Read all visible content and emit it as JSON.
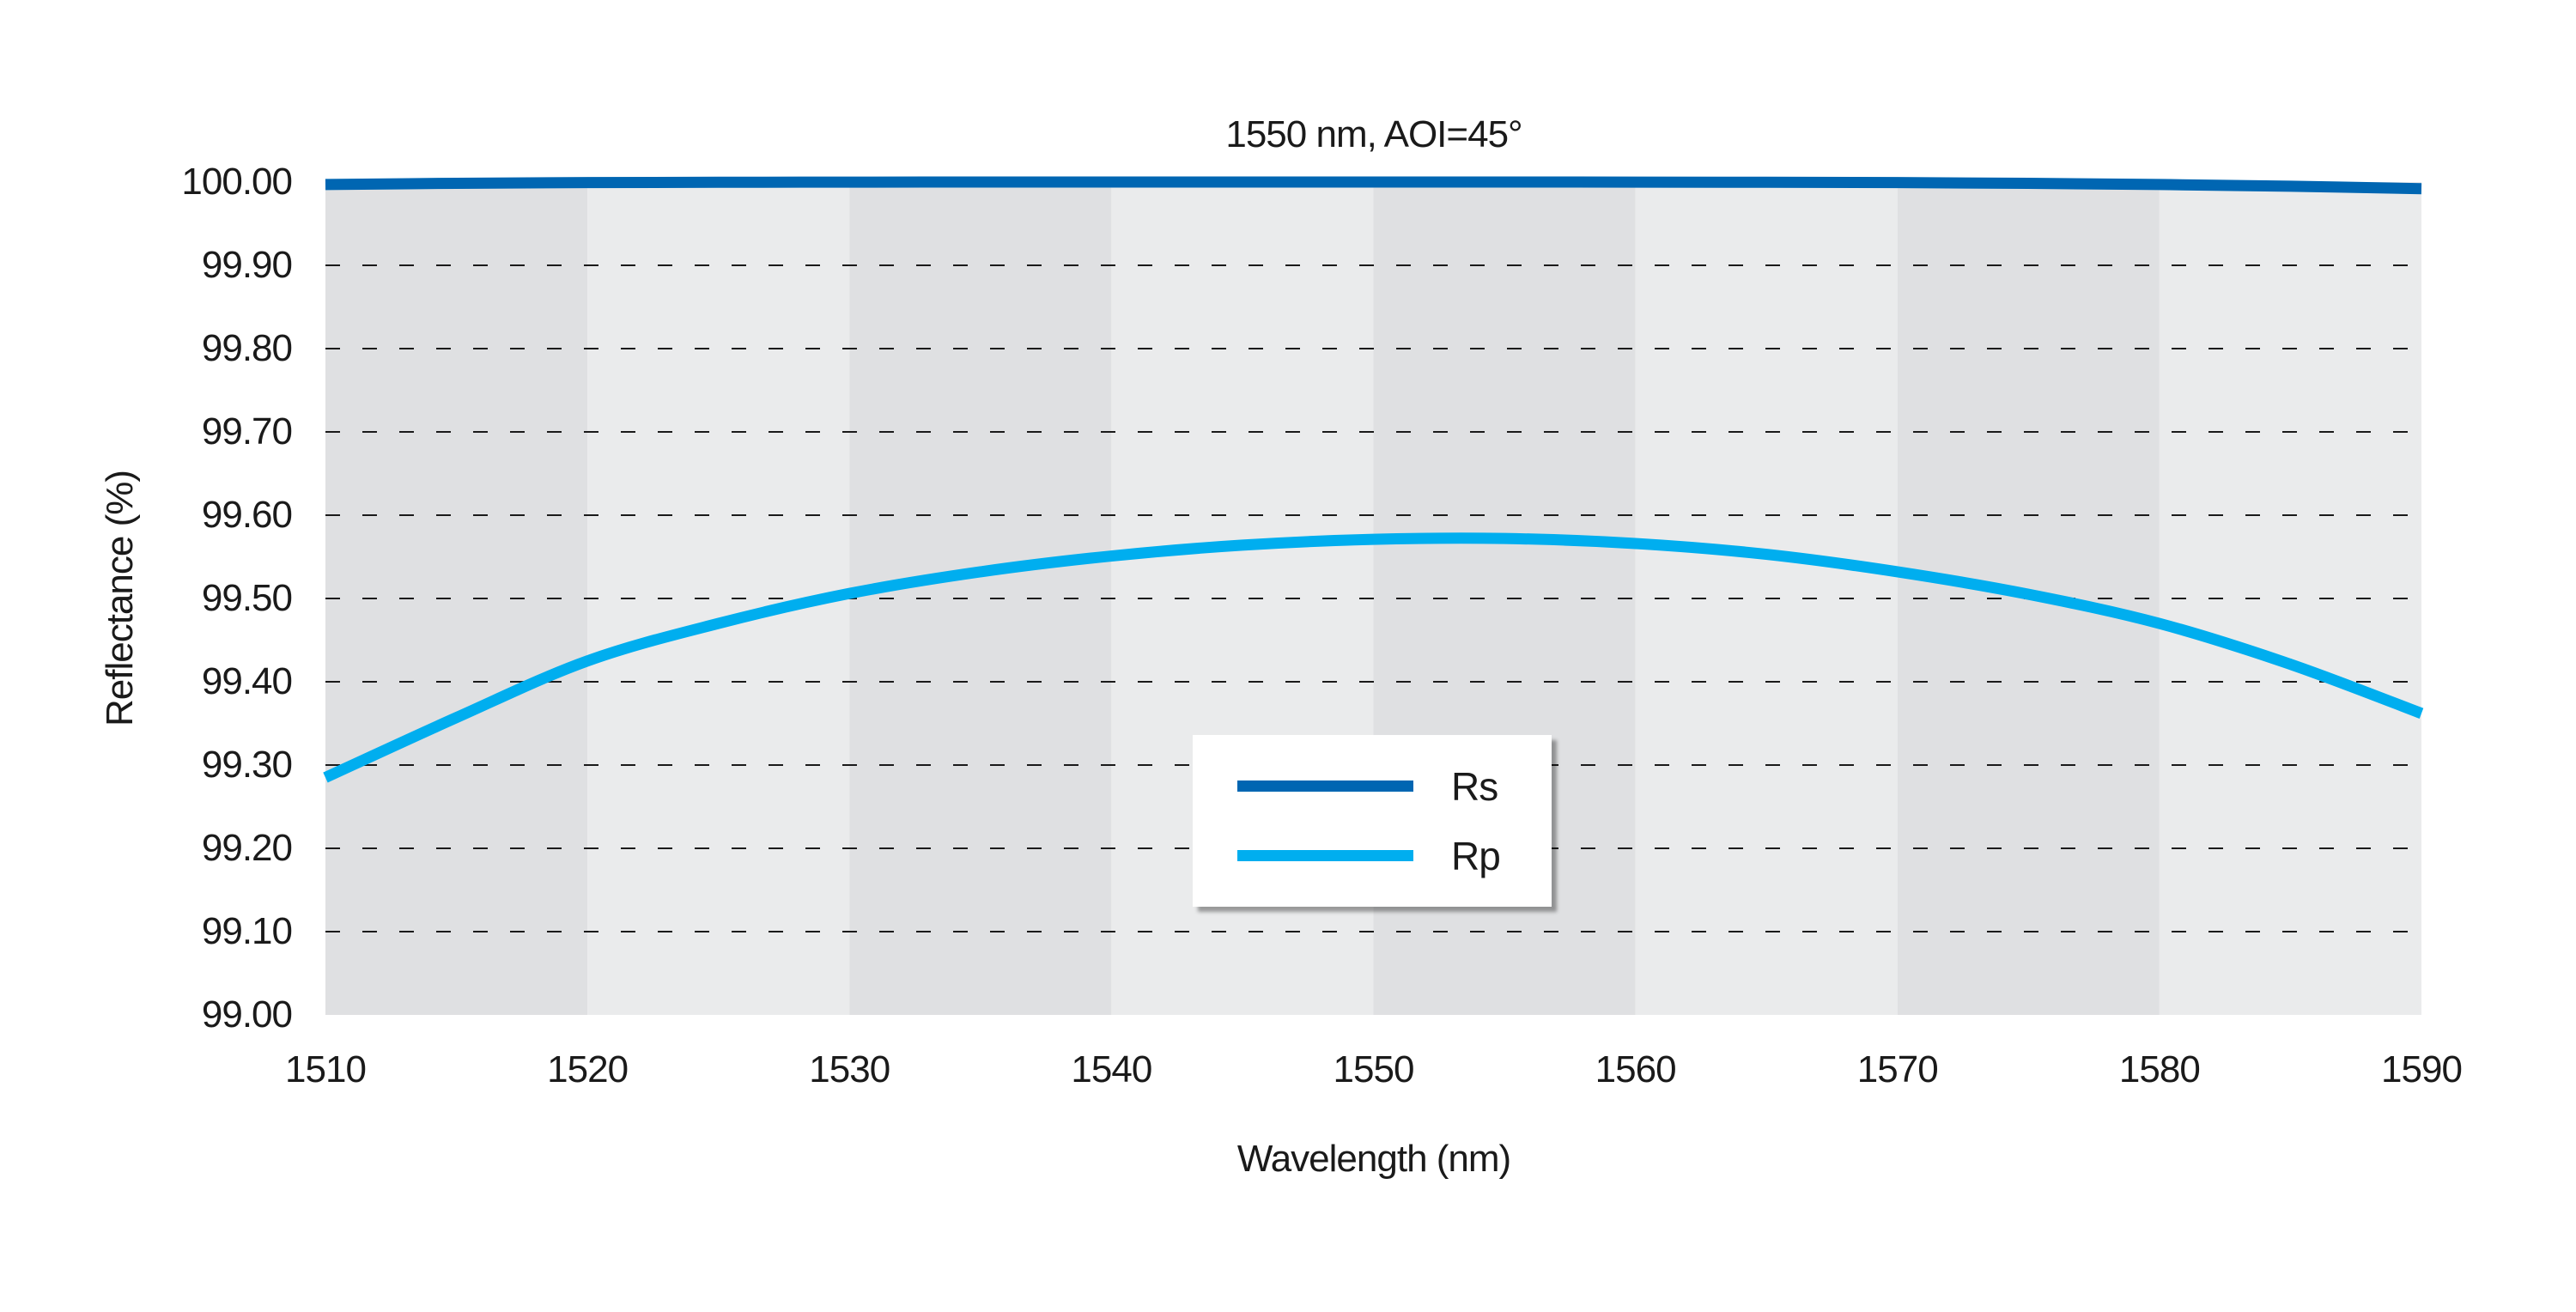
{
  "chart_data": {
    "type": "line",
    "title": "1550 nm, AOI=45°",
    "xlabel": "Wavelength (nm)",
    "ylabel": "Reflectance (%)",
    "x_range": [
      1510,
      1590
    ],
    "y_range": [
      99.0,
      100.0
    ],
    "x_ticks": [
      1510,
      1520,
      1530,
      1540,
      1550,
      1560,
      1570,
      1580,
      1590
    ],
    "y_ticks": [
      100.0,
      99.9,
      99.8,
      99.7,
      99.6,
      99.5,
      99.4,
      99.3,
      99.2,
      99.1,
      99.0
    ],
    "grid": {
      "horizontal": "dashed",
      "color": "#1a1a1a",
      "dash": [
        17,
        26
      ],
      "width": 2
    },
    "background_bands": {
      "interval_nm": 10,
      "dark_color": "#dfe0e2",
      "light_color": "#eaebec",
      "first_band": "dark"
    },
    "line_width": 13,
    "legend_position": "center",
    "series": [
      {
        "name": "Rs",
        "color": "#0066b2",
        "x": [
          1510,
          1515,
          1520,
          1525,
          1530,
          1535,
          1540,
          1545,
          1550,
          1555,
          1560,
          1565,
          1570,
          1575,
          1580,
          1585,
          1590
        ],
        "values": [
          99.997,
          99.9985,
          99.9993,
          99.9997,
          99.9999,
          100.0,
          100.0,
          100.0,
          100.0,
          100.0,
          99.9999,
          99.9997,
          99.9993,
          99.9985,
          99.997,
          99.995,
          99.992
        ]
      },
      {
        "name": "Rp",
        "color": "#00aeef",
        "x": [
          1510,
          1515,
          1520,
          1525,
          1530,
          1535,
          1540,
          1545,
          1550,
          1555,
          1560,
          1565,
          1570,
          1575,
          1580,
          1585,
          1590
        ],
        "values": [
          99.285,
          99.357,
          99.425,
          99.47,
          99.506,
          99.532,
          99.551,
          99.564,
          99.571,
          99.572,
          99.566,
          99.553,
          99.532,
          99.505,
          99.47,
          99.421,
          99.362
        ]
      }
    ]
  }
}
